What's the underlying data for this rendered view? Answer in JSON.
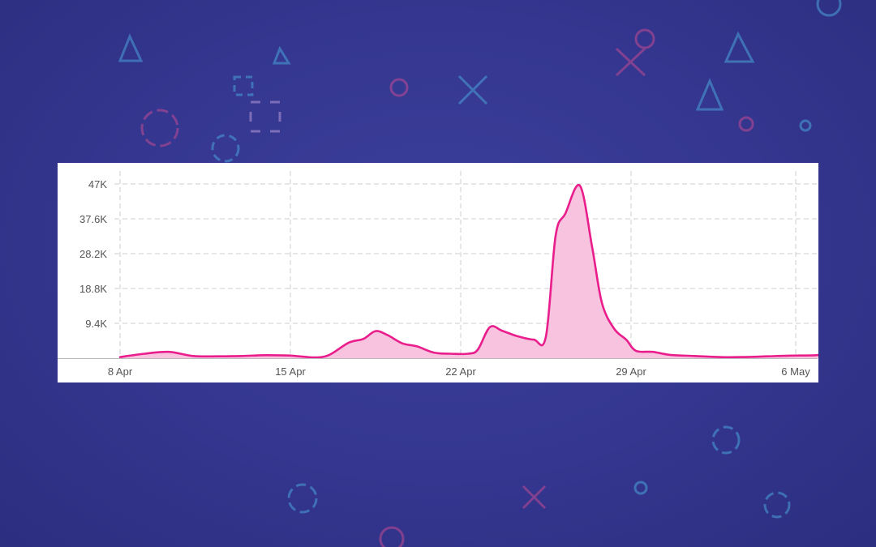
{
  "colors": {
    "background": "#35378f",
    "line": "#e91e8c",
    "fill": "#f7c3df",
    "grid": "#cccccc",
    "axis": "#bbbbbb"
  },
  "decorations": [
    "triangle-icon",
    "circle-icon",
    "cross-icon",
    "square-icon"
  ],
  "chart_data": {
    "type": "area",
    "title": "",
    "xlabel": "",
    "ylabel": "",
    "x_ticks": [
      "8 Apr",
      "15 Apr",
      "22 Apr",
      "29 Apr",
      "6 May"
    ],
    "y_ticks": [
      "9.4K",
      "18.8K",
      "28.2K",
      "37.6K",
      "47K"
    ],
    "y_tick_values": [
      9400,
      18800,
      28200,
      37600,
      47000
    ],
    "ylim": [
      0,
      47000
    ],
    "grid": true,
    "legend": "none",
    "series": [
      {
        "x": [
          "8 Apr",
          "9 Apr",
          "10 Apr",
          "11 Apr",
          "12 Apr",
          "13 Apr",
          "14 Apr",
          "15 Apr",
          "16 Apr",
          "17 Apr",
          "17 Apr",
          "18 Apr",
          "18 Apr",
          "19 Apr",
          "19 Apr",
          "20 Apr",
          "20 Apr",
          "21 Apr",
          "22 Apr",
          "22 Apr",
          "23 Apr",
          "23 Apr",
          "24 Apr",
          "24 Apr",
          "25 Apr",
          "25 Apr",
          "26 Apr",
          "26 Apr",
          "27 Apr",
          "27 Apr",
          "28 Apr",
          "28 Apr",
          "29 Apr",
          "29 Apr",
          "30 Apr",
          "1 May",
          "2 May",
          "3 May",
          "4 May",
          "5 May",
          "6 May",
          "7 May"
        ],
        "values": [
          300,
          1200,
          1700,
          600,
          500,
          600,
          800,
          700,
          200,
          900,
          4200,
          5200,
          7300,
          6200,
          4000,
          3200,
          1500,
          1200,
          1200,
          2300,
          8400,
          7400,
          6000,
          5000,
          5800,
          33000,
          39000,
          46500,
          30000,
          15000,
          8000,
          5000,
          2000,
          1700,
          900,
          600,
          300,
          300,
          500,
          700,
          800,
          1300
        ]
      }
    ]
  }
}
